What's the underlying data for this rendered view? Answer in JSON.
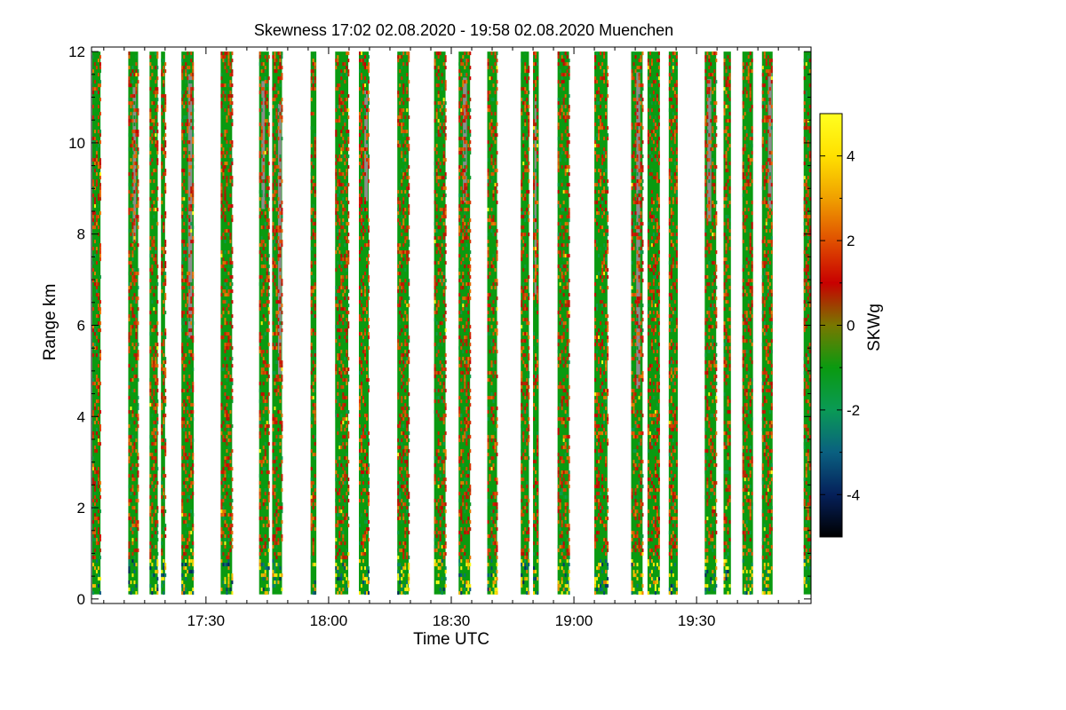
{
  "chart_data": {
    "type": "heatmap",
    "title": "Skewness   17:02 02.08.2020 - 19:58 02.08.2020 Muenchen",
    "xlabel": "Time UTC",
    "ylabel": "Range km",
    "xlim_minutes_utc": [
      1022,
      1198
    ],
    "ylim": [
      -0.1,
      12.1
    ],
    "x_ticks": [
      {
        "minute": 1050,
        "label": "17:30"
      },
      {
        "minute": 1080,
        "label": "18:00"
      },
      {
        "minute": 1110,
        "label": "18:30"
      },
      {
        "minute": 1140,
        "label": "19:00"
      },
      {
        "minute": 1170,
        "label": "19:30"
      }
    ],
    "y_ticks": [
      {
        "value": 0,
        "label": "0"
      },
      {
        "value": 2,
        "label": "2"
      },
      {
        "value": 4,
        "label": "4"
      },
      {
        "value": 6,
        "label": "6"
      },
      {
        "value": 8,
        "label": "8"
      },
      {
        "value": 10,
        "label": "10"
      },
      {
        "value": 12,
        "label": "12"
      }
    ],
    "colorbar": {
      "label": "SKWg",
      "range": [
        -5,
        5
      ],
      "ticks": [
        {
          "value": 4,
          "label": "4"
        },
        {
          "value": 2,
          "label": "2"
        },
        {
          "value": 0,
          "label": "0"
        },
        {
          "value": -2,
          "label": "-2"
        },
        {
          "value": -4,
          "label": "-4"
        }
      ],
      "colors": [
        "#000000",
        "#05205a",
        "#0a6080",
        "#0a9a55",
        "#0a9a10",
        "#787800",
        "#c80000",
        "#e05000",
        "#f0a000",
        "#ffe000",
        "#ffff20"
      ]
    },
    "range_top_km": 12,
    "range_bottom_km": 0.1,
    "scan_periods_minutes_utc": [
      [
        1022.2,
        1024.2
      ],
      [
        1031.0,
        1033.4
      ],
      [
        1036.2,
        1038.2
      ],
      [
        1039.0,
        1040.0
      ],
      [
        1044.0,
        1047.0
      ],
      [
        1053.6,
        1056.4
      ],
      [
        1063.0,
        1065.4
      ],
      [
        1066.2,
        1068.6
      ],
      [
        1075.6,
        1077.0
      ],
      [
        1081.6,
        1084.8
      ],
      [
        1087.4,
        1089.8
      ],
      [
        1096.8,
        1099.6
      ],
      [
        1105.8,
        1108.6
      ],
      [
        1111.8,
        1114.6
      ],
      [
        1118.8,
        1121.2
      ],
      [
        1127.0,
        1129.0
      ],
      [
        1130.0,
        1131.4
      ],
      [
        1136.0,
        1138.8
      ],
      [
        1145.0,
        1148.2
      ],
      [
        1154.0,
        1156.8
      ],
      [
        1158.0,
        1161.0
      ],
      [
        1163.2,
        1165.4
      ],
      [
        1172.0,
        1174.8
      ],
      [
        1176.6,
        1178.4
      ],
      [
        1181.2,
        1183.8
      ],
      [
        1186.0,
        1188.6
      ],
      [
        1196.2,
        1198.0
      ]
    ],
    "dominant_value": -1.0,
    "description_values": {
      "mostly": "green (about -1)",
      "frequent": "red/orange streaks (about 1 to 3)",
      "near_ground": "yellow/orange speckles (about 3 to 5)",
      "missing": "grey (no valid data)"
    }
  }
}
